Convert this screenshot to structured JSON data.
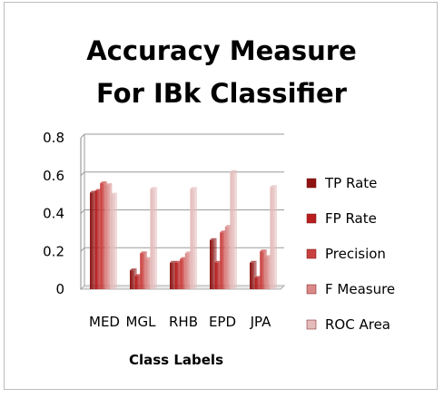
{
  "chart_data": {
    "type": "bar",
    "title_lines": [
      "Accuracy Measure",
      "For IBk Classifier"
    ],
    "xlabel": "Class Labels",
    "ylabel": "",
    "ylim": [
      0,
      0.8
    ],
    "yticks": [
      "0",
      "0.2",
      "0.4",
      "0.6",
      "0.8"
    ],
    "ytick_values": [
      0,
      0.2,
      0.4,
      0.6,
      0.8
    ],
    "grid": true,
    "legend_position": "right",
    "categories": [
      "MED",
      "MGL",
      "RHB",
      "EPD",
      "JPA"
    ],
    "series": [
      {
        "name": "TP Rate",
        "color": "#8e1414",
        "values": [
          0.51,
          0.1,
          0.14,
          0.26,
          0.14
        ]
      },
      {
        "name": "FP Rate",
        "color": "#b81e1e",
        "values": [
          0.52,
          0.07,
          0.14,
          0.14,
          0.06
        ]
      },
      {
        "name": "Precision",
        "color": "#c8403f",
        "values": [
          0.56,
          0.19,
          0.16,
          0.3,
          0.2
        ]
      },
      {
        "name": "F Measure",
        "color": "#d98a88",
        "values": [
          0.55,
          0.16,
          0.19,
          0.33,
          0.17
        ]
      },
      {
        "name": "ROC Area",
        "color": "#e3bcbb",
        "values": [
          0.5,
          0.53,
          0.53,
          0.62,
          0.54
        ]
      }
    ]
  }
}
